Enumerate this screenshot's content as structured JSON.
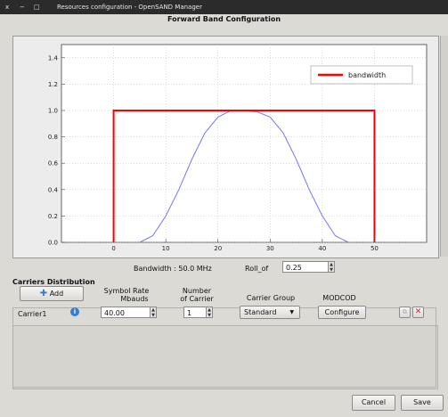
{
  "window": {
    "controls": [
      "x",
      "−",
      "□"
    ],
    "title": "Resources configuration - OpenSAND Manager"
  },
  "dialog": {
    "title": "Forward Band Configuration"
  },
  "chart_data": {
    "type": "line",
    "x_ticks": [
      0,
      10,
      20,
      30,
      40,
      50
    ],
    "y_ticks": [
      0.0,
      0.2,
      0.4,
      0.6,
      0.8,
      1.0,
      1.2,
      1.4
    ],
    "xlim": [
      -10,
      60
    ],
    "ylim": [
      0,
      1.5
    ],
    "grid": true,
    "legend": {
      "position": "top-right",
      "entries": [
        "bandwidth"
      ]
    },
    "series": [
      {
        "name": "bandwidth",
        "color": "#ff0000",
        "x": [
          0,
          0,
          50,
          50
        ],
        "y": [
          0,
          1,
          1,
          0
        ]
      },
      {
        "color": "#7777ee",
        "x": [
          5,
          7.5,
          10,
          12.5,
          15,
          17.5,
          20,
          22.5,
          25,
          27.5,
          30,
          32.5,
          35,
          37.5,
          40,
          42.5,
          45
        ],
        "y": [
          0,
          0.05,
          0.2,
          0.4,
          0.63,
          0.83,
          0.95,
          1.0,
          1.0,
          0.99,
          0.95,
          0.83,
          0.63,
          0.4,
          0.2,
          0.05,
          0
        ]
      }
    ]
  },
  "params": {
    "bandwidth_text": "Bandwidth :  50.0 MHz",
    "roll_label": "Roll_of",
    "roll_value": "0.25"
  },
  "carriers": {
    "section_title": "Carriers Distribution",
    "add_label": "Add",
    "col_symbol": "Symbol Rate Mbauds",
    "col_symbol_l1": "Symbol Rate",
    "col_symbol_l2": "Mbauds",
    "col_number_l1": "Number",
    "col_number_l2": "of Carrier",
    "col_group": "Carrier Group",
    "col_modcod": "MODCOD",
    "row": {
      "name": "Carrier1",
      "symbol_rate": "40.00",
      "number": "1",
      "group": "Standard",
      "modcod_button": "Configure"
    }
  },
  "footer": {
    "cancel": "Cancel",
    "save": "Save"
  },
  "colors": {
    "titlebar": "#2b2b2b",
    "window_bg": "#dcdad5",
    "info_icon": "#3a7bd5",
    "add_icon": "#3a7bd5",
    "delete_icon": "#d22"
  }
}
